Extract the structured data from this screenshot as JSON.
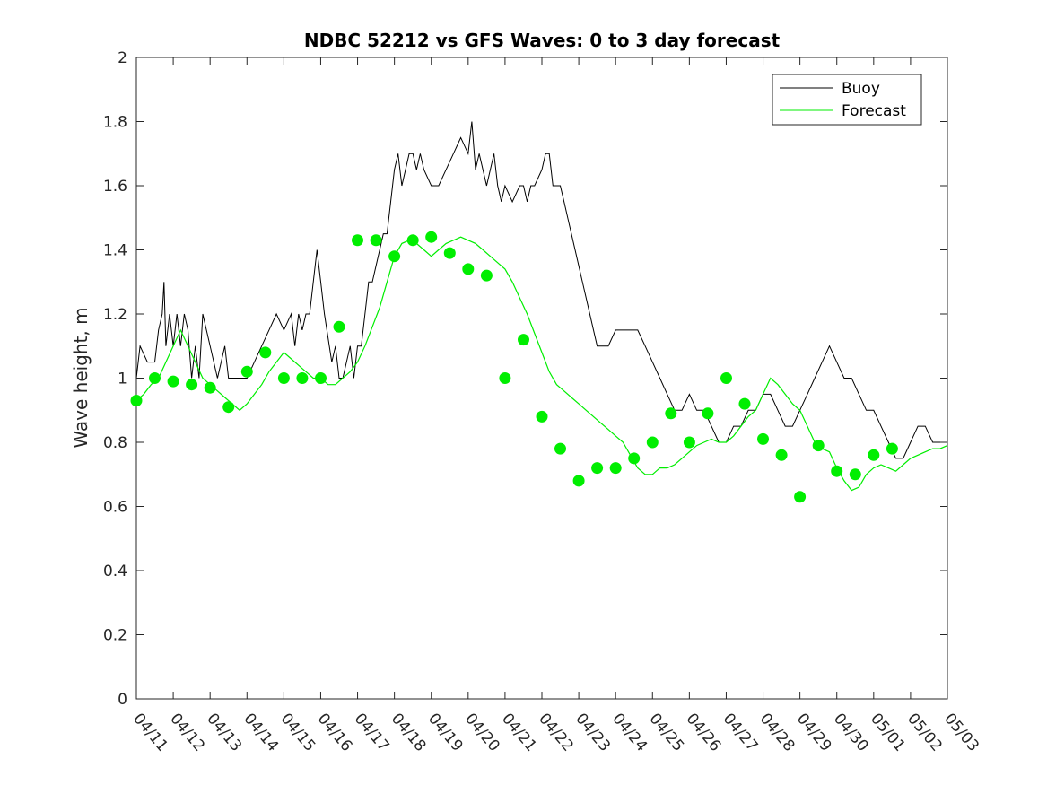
{
  "chart_data": {
    "type": "line",
    "title": "NDBC 52212 vs GFS Waves: 0 to 3 day forecast",
    "ylabel": "Wave height, m",
    "xlabel": "",
    "x_tick_labels": [
      "04/11",
      "04/12",
      "04/13",
      "04/14",
      "04/15",
      "04/16",
      "04/17",
      "04/18",
      "04/19",
      "04/20",
      "04/21",
      "04/22",
      "04/23",
      "04/24",
      "04/25",
      "04/26",
      "04/27",
      "04/28",
      "04/29",
      "04/30",
      "05/01",
      "05/02",
      "05/03"
    ],
    "y_tick_labels": [
      "0",
      "0.2",
      "0.4",
      "0.6",
      "0.8",
      "1",
      "1.2",
      "1.4",
      "1.6",
      "1.8",
      "2"
    ],
    "x_range_days": [
      0,
      22
    ],
    "ylim": [
      0,
      2
    ],
    "grid": false,
    "legend_position": "top-right",
    "colors": {
      "buoy": "#000000",
      "forecast": "#00ee00",
      "axes": "#262626"
    },
    "buoy": {
      "name": "Buoy",
      "points": [
        [
          0.0,
          1.0
        ],
        [
          0.1,
          1.1
        ],
        [
          0.3,
          1.05
        ],
        [
          0.5,
          1.05
        ],
        [
          0.6,
          1.15
        ],
        [
          0.7,
          1.2
        ],
        [
          0.75,
          1.3
        ],
        [
          0.8,
          1.1
        ],
        [
          0.9,
          1.2
        ],
        [
          1.0,
          1.1
        ],
        [
          1.1,
          1.2
        ],
        [
          1.2,
          1.1
        ],
        [
          1.3,
          1.2
        ],
        [
          1.4,
          1.15
        ],
        [
          1.5,
          1.0
        ],
        [
          1.6,
          1.1
        ],
        [
          1.7,
          1.0
        ],
        [
          1.8,
          1.2
        ],
        [
          1.9,
          1.15
        ],
        [
          2.0,
          1.1
        ],
        [
          2.2,
          1.0
        ],
        [
          2.4,
          1.1
        ],
        [
          2.5,
          1.0
        ],
        [
          2.6,
          1.0
        ],
        [
          2.8,
          1.0
        ],
        [
          3.0,
          1.0
        ],
        [
          3.2,
          1.05
        ],
        [
          3.4,
          1.1
        ],
        [
          3.6,
          1.15
        ],
        [
          3.8,
          1.2
        ],
        [
          4.0,
          1.15
        ],
        [
          4.2,
          1.2
        ],
        [
          4.3,
          1.1
        ],
        [
          4.4,
          1.2
        ],
        [
          4.5,
          1.15
        ],
        [
          4.6,
          1.2
        ],
        [
          4.7,
          1.2
        ],
        [
          4.8,
          1.3
        ],
        [
          4.9,
          1.4
        ],
        [
          5.0,
          1.3
        ],
        [
          5.1,
          1.2
        ],
        [
          5.3,
          1.05
        ],
        [
          5.4,
          1.1
        ],
        [
          5.5,
          1.0
        ],
        [
          5.6,
          1.0
        ],
        [
          5.8,
          1.1
        ],
        [
          5.9,
          1.0
        ],
        [
          6.0,
          1.1
        ],
        [
          6.1,
          1.1
        ],
        [
          6.2,
          1.2
        ],
        [
          6.3,
          1.3
        ],
        [
          6.4,
          1.3
        ],
        [
          6.5,
          1.35
        ],
        [
          6.6,
          1.4
        ],
        [
          6.7,
          1.45
        ],
        [
          6.8,
          1.45
        ],
        [
          6.9,
          1.55
        ],
        [
          7.0,
          1.65
        ],
        [
          7.1,
          1.7
        ],
        [
          7.2,
          1.6
        ],
        [
          7.3,
          1.65
        ],
        [
          7.4,
          1.7
        ],
        [
          7.5,
          1.7
        ],
        [
          7.6,
          1.65
        ],
        [
          7.7,
          1.7
        ],
        [
          7.8,
          1.65
        ],
        [
          8.0,
          1.6
        ],
        [
          8.2,
          1.6
        ],
        [
          8.4,
          1.65
        ],
        [
          8.6,
          1.7
        ],
        [
          8.8,
          1.75
        ],
        [
          9.0,
          1.7
        ],
        [
          9.1,
          1.8
        ],
        [
          9.2,
          1.65
        ],
        [
          9.3,
          1.7
        ],
        [
          9.5,
          1.6
        ],
        [
          9.7,
          1.7
        ],
        [
          9.8,
          1.6
        ],
        [
          9.9,
          1.55
        ],
        [
          10.0,
          1.6
        ],
        [
          10.2,
          1.55
        ],
        [
          10.4,
          1.6
        ],
        [
          10.5,
          1.6
        ],
        [
          10.6,
          1.55
        ],
        [
          10.7,
          1.6
        ],
        [
          10.8,
          1.6
        ],
        [
          11.0,
          1.65
        ],
        [
          11.1,
          1.7
        ],
        [
          11.2,
          1.7
        ],
        [
          11.3,
          1.6
        ],
        [
          11.5,
          1.6
        ],
        [
          11.6,
          1.55
        ],
        [
          11.7,
          1.5
        ],
        [
          11.8,
          1.45
        ],
        [
          11.9,
          1.4
        ],
        [
          12.0,
          1.35
        ],
        [
          12.1,
          1.3
        ],
        [
          12.2,
          1.25
        ],
        [
          12.3,
          1.2
        ],
        [
          12.4,
          1.15
        ],
        [
          12.5,
          1.1
        ],
        [
          12.6,
          1.1
        ],
        [
          12.8,
          1.1
        ],
        [
          13.0,
          1.15
        ],
        [
          13.2,
          1.15
        ],
        [
          13.4,
          1.15
        ],
        [
          13.6,
          1.15
        ],
        [
          13.8,
          1.1
        ],
        [
          14.0,
          1.05
        ],
        [
          14.2,
          1.0
        ],
        [
          14.4,
          0.95
        ],
        [
          14.6,
          0.9
        ],
        [
          14.8,
          0.9
        ],
        [
          15.0,
          0.95
        ],
        [
          15.2,
          0.9
        ],
        [
          15.4,
          0.9
        ],
        [
          15.6,
          0.85
        ],
        [
          15.8,
          0.8
        ],
        [
          16.0,
          0.8
        ],
        [
          16.2,
          0.85
        ],
        [
          16.4,
          0.85
        ],
        [
          16.6,
          0.9
        ],
        [
          16.8,
          0.9
        ],
        [
          17.0,
          0.95
        ],
        [
          17.2,
          0.95
        ],
        [
          17.4,
          0.9
        ],
        [
          17.6,
          0.85
        ],
        [
          17.8,
          0.85
        ],
        [
          18.0,
          0.9
        ],
        [
          18.2,
          0.95
        ],
        [
          18.4,
          1.0
        ],
        [
          18.6,
          1.05
        ],
        [
          18.8,
          1.1
        ],
        [
          19.0,
          1.05
        ],
        [
          19.2,
          1.0
        ],
        [
          19.4,
          1.0
        ],
        [
          19.6,
          0.95
        ],
        [
          19.8,
          0.9
        ],
        [
          20.0,
          0.9
        ],
        [
          20.2,
          0.85
        ],
        [
          20.4,
          0.8
        ],
        [
          20.6,
          0.75
        ],
        [
          20.8,
          0.75
        ],
        [
          21.0,
          0.8
        ],
        [
          21.2,
          0.85
        ],
        [
          21.4,
          0.85
        ],
        [
          21.6,
          0.8
        ],
        [
          21.8,
          0.8
        ],
        [
          22.0,
          0.8
        ]
      ]
    },
    "forecast": {
      "name": "Forecast",
      "points": [
        [
          0.0,
          0.93
        ],
        [
          0.2,
          0.95
        ],
        [
          0.4,
          0.98
        ],
        [
          0.6,
          1.0
        ],
        [
          0.8,
          1.05
        ],
        [
          1.0,
          1.1
        ],
        [
          1.2,
          1.15
        ],
        [
          1.4,
          1.1
        ],
        [
          1.6,
          1.05
        ],
        [
          1.8,
          1.0
        ],
        [
          2.0,
          0.98
        ],
        [
          2.2,
          0.96
        ],
        [
          2.4,
          0.94
        ],
        [
          2.6,
          0.92
        ],
        [
          2.8,
          0.9
        ],
        [
          3.0,
          0.92
        ],
        [
          3.2,
          0.95
        ],
        [
          3.4,
          0.98
        ],
        [
          3.6,
          1.02
        ],
        [
          3.8,
          1.05
        ],
        [
          4.0,
          1.08
        ],
        [
          4.2,
          1.06
        ],
        [
          4.4,
          1.04
        ],
        [
          4.6,
          1.02
        ],
        [
          4.8,
          1.0
        ],
        [
          5.0,
          1.0
        ],
        [
          5.2,
          0.98
        ],
        [
          5.4,
          0.98
        ],
        [
          5.6,
          1.0
        ],
        [
          5.8,
          1.02
        ],
        [
          6.0,
          1.05
        ],
        [
          6.2,
          1.1
        ],
        [
          6.4,
          1.16
        ],
        [
          6.6,
          1.22
        ],
        [
          6.8,
          1.3
        ],
        [
          7.0,
          1.38
        ],
        [
          7.2,
          1.42
        ],
        [
          7.4,
          1.43
        ],
        [
          7.6,
          1.42
        ],
        [
          7.8,
          1.4
        ],
        [
          8.0,
          1.38
        ],
        [
          8.2,
          1.4
        ],
        [
          8.4,
          1.42
        ],
        [
          8.6,
          1.43
        ],
        [
          8.8,
          1.44
        ],
        [
          9.0,
          1.43
        ],
        [
          9.2,
          1.42
        ],
        [
          9.4,
          1.4
        ],
        [
          9.6,
          1.38
        ],
        [
          9.8,
          1.36
        ],
        [
          10.0,
          1.34
        ],
        [
          10.2,
          1.3
        ],
        [
          10.4,
          1.25
        ],
        [
          10.6,
          1.2
        ],
        [
          10.8,
          1.14
        ],
        [
          11.0,
          1.08
        ],
        [
          11.2,
          1.02
        ],
        [
          11.4,
          0.98
        ],
        [
          11.6,
          0.96
        ],
        [
          11.8,
          0.94
        ],
        [
          12.0,
          0.92
        ],
        [
          12.2,
          0.9
        ],
        [
          12.4,
          0.88
        ],
        [
          12.6,
          0.86
        ],
        [
          12.8,
          0.84
        ],
        [
          13.0,
          0.82
        ],
        [
          13.2,
          0.8
        ],
        [
          13.4,
          0.76
        ],
        [
          13.6,
          0.72
        ],
        [
          13.8,
          0.7
        ],
        [
          14.0,
          0.7
        ],
        [
          14.2,
          0.72
        ],
        [
          14.4,
          0.72
        ],
        [
          14.6,
          0.73
        ],
        [
          14.8,
          0.75
        ],
        [
          15.0,
          0.77
        ],
        [
          15.2,
          0.79
        ],
        [
          15.4,
          0.8
        ],
        [
          15.6,
          0.81
        ],
        [
          15.8,
          0.8
        ],
        [
          16.0,
          0.8
        ],
        [
          16.2,
          0.82
        ],
        [
          16.4,
          0.85
        ],
        [
          16.6,
          0.88
        ],
        [
          16.8,
          0.9
        ],
        [
          17.0,
          0.95
        ],
        [
          17.2,
          1.0
        ],
        [
          17.4,
          0.98
        ],
        [
          17.6,
          0.95
        ],
        [
          17.8,
          0.92
        ],
        [
          18.0,
          0.9
        ],
        [
          18.2,
          0.85
        ],
        [
          18.4,
          0.8
        ],
        [
          18.6,
          0.78
        ],
        [
          18.8,
          0.77
        ],
        [
          19.0,
          0.72
        ],
        [
          19.2,
          0.68
        ],
        [
          19.4,
          0.65
        ],
        [
          19.6,
          0.66
        ],
        [
          19.8,
          0.7
        ],
        [
          20.0,
          0.72
        ],
        [
          20.2,
          0.73
        ],
        [
          20.4,
          0.72
        ],
        [
          20.6,
          0.71
        ],
        [
          20.8,
          0.73
        ],
        [
          21.0,
          0.75
        ],
        [
          21.2,
          0.76
        ],
        [
          21.4,
          0.77
        ],
        [
          21.6,
          0.78
        ],
        [
          21.8,
          0.78
        ],
        [
          22.0,
          0.79
        ]
      ]
    },
    "forecast_marker_points": [
      [
        0.0,
        0.93
      ],
      [
        0.5,
        1.0
      ],
      [
        1.0,
        0.99
      ],
      [
        1.5,
        0.98
      ],
      [
        2.0,
        0.97
      ],
      [
        2.5,
        0.91
      ],
      [
        3.0,
        1.02
      ],
      [
        3.5,
        1.08
      ],
      [
        4.0,
        1.0
      ],
      [
        4.5,
        1.0
      ],
      [
        5.0,
        1.0
      ],
      [
        5.5,
        1.16
      ],
      [
        6.0,
        1.43
      ],
      [
        6.5,
        1.43
      ],
      [
        7.0,
        1.38
      ],
      [
        7.5,
        1.43
      ],
      [
        8.0,
        1.44
      ],
      [
        8.5,
        1.39
      ],
      [
        9.0,
        1.34
      ],
      [
        9.5,
        1.32
      ],
      [
        10.0,
        1.0
      ],
      [
        10.5,
        1.12
      ],
      [
        11.0,
        0.88
      ],
      [
        11.5,
        0.78
      ],
      [
        12.0,
        0.68
      ],
      [
        12.5,
        0.72
      ],
      [
        13.0,
        0.72
      ],
      [
        13.5,
        0.75
      ],
      [
        14.0,
        0.8
      ],
      [
        14.5,
        0.89
      ],
      [
        15.0,
        0.8
      ],
      [
        15.5,
        0.89
      ],
      [
        16.0,
        1.0
      ],
      [
        16.5,
        0.92
      ],
      [
        17.0,
        0.81
      ],
      [
        17.5,
        0.76
      ],
      [
        18.0,
        0.63
      ],
      [
        18.5,
        0.79
      ],
      [
        19.0,
        0.71
      ],
      [
        19.5,
        0.7
      ],
      [
        20.0,
        0.76
      ],
      [
        20.5,
        0.78
      ]
    ]
  }
}
